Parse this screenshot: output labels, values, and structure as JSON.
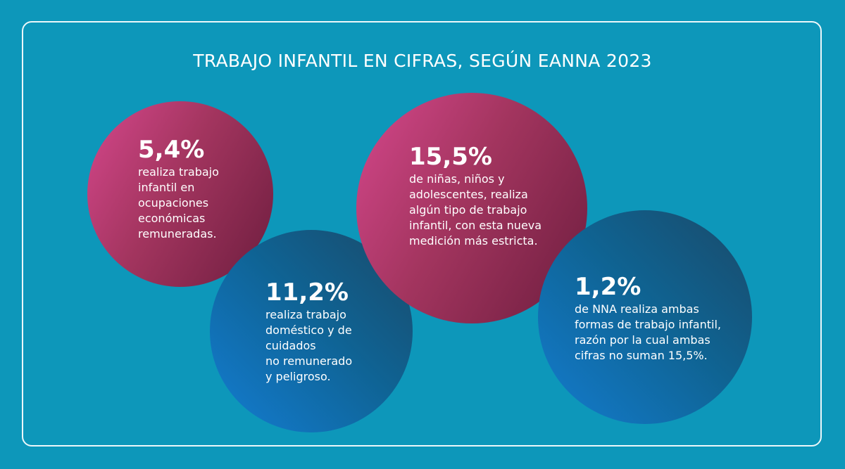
{
  "title": "TRABAJO INFANTIL EN CIFRAS, SEGÚN EANNA 2023",
  "colors": {
    "background": "#0d97ba",
    "pink": "#c33f7d",
    "blue": "#1466a3",
    "text": "#ffffff"
  },
  "stats": [
    {
      "value": "5,4%",
      "description": "realiza trabajo\ninfantil en\nocupaciones\neconómicas\nremuneradas."
    },
    {
      "value": "11,2%",
      "description": "realiza trabajo\ndoméstico y de\ncuidados\nno remunerado\ny peligroso."
    },
    {
      "value": "15,5%",
      "description": "de niñas, niños y\nadolescentes, realiza\nalgún tipo de trabajo\ninfantil, con esta nueva\nmedición más estricta."
    },
    {
      "value": "1,2%",
      "description": "de NNA realiza ambas\nformas de trabajo infantil,\nrazón por la cual ambas\ncifras no suman 15,5%."
    }
  ]
}
